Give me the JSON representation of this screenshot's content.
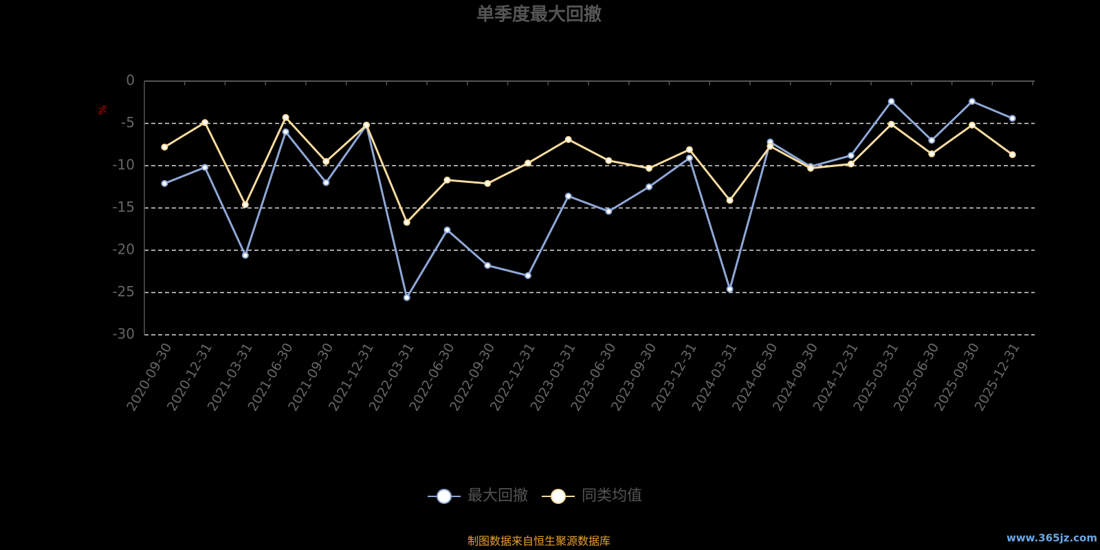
{
  "chart_data": {
    "type": "line",
    "title": "单季度最大回撤",
    "y_label": "%",
    "categories": [
      "2020-09-30",
      "2020-12-31",
      "2021-03-31",
      "2021-06-30",
      "2021-09-30",
      "2021-12-31",
      "2022-03-31",
      "2022-06-30",
      "2022-09-30",
      "2022-12-31",
      "2023-03-31",
      "2023-06-30",
      "2023-09-30",
      "2023-12-31",
      "2024-03-31",
      "2024-06-30",
      "2024-09-30",
      "2024-12-31",
      "2025-03-31",
      "2025-06-30",
      "2025-09-30",
      "2025-12-31"
    ],
    "series": [
      {
        "name": "最大回撤",
        "color": "#8fa8d8",
        "values": [
          -12.1,
          -10.2,
          -20.6,
          -6.0,
          -12.0,
          -5.2,
          -25.6,
          -17.6,
          -21.8,
          -23.0,
          -13.6,
          -15.4,
          -12.5,
          -9.1,
          -24.6,
          -7.2,
          -10.1,
          -8.8,
          -2.4,
          -7.0,
          -2.4,
          -4.4
        ]
      },
      {
        "name": "同类均值",
        "color": "#f9dca0",
        "values": [
          -7.8,
          -4.9,
          -14.6,
          -4.3,
          -9.5,
          -5.2,
          -16.7,
          -11.7,
          -12.1,
          -9.7,
          -6.9,
          -9.4,
          -10.3,
          -8.1,
          -14.1,
          -7.7,
          -10.3,
          -9.8,
          -5.1,
          -8.6,
          -5.2,
          -8.7
        ]
      }
    ],
    "ylim": [
      -30,
      0
    ],
    "yticks": [
      0,
      -5,
      -10,
      -15,
      -20,
      -25,
      -30
    ],
    "grid": true,
    "source": "制图数据来自恒生聚源数据库",
    "watermark": "www.365jz.com"
  }
}
